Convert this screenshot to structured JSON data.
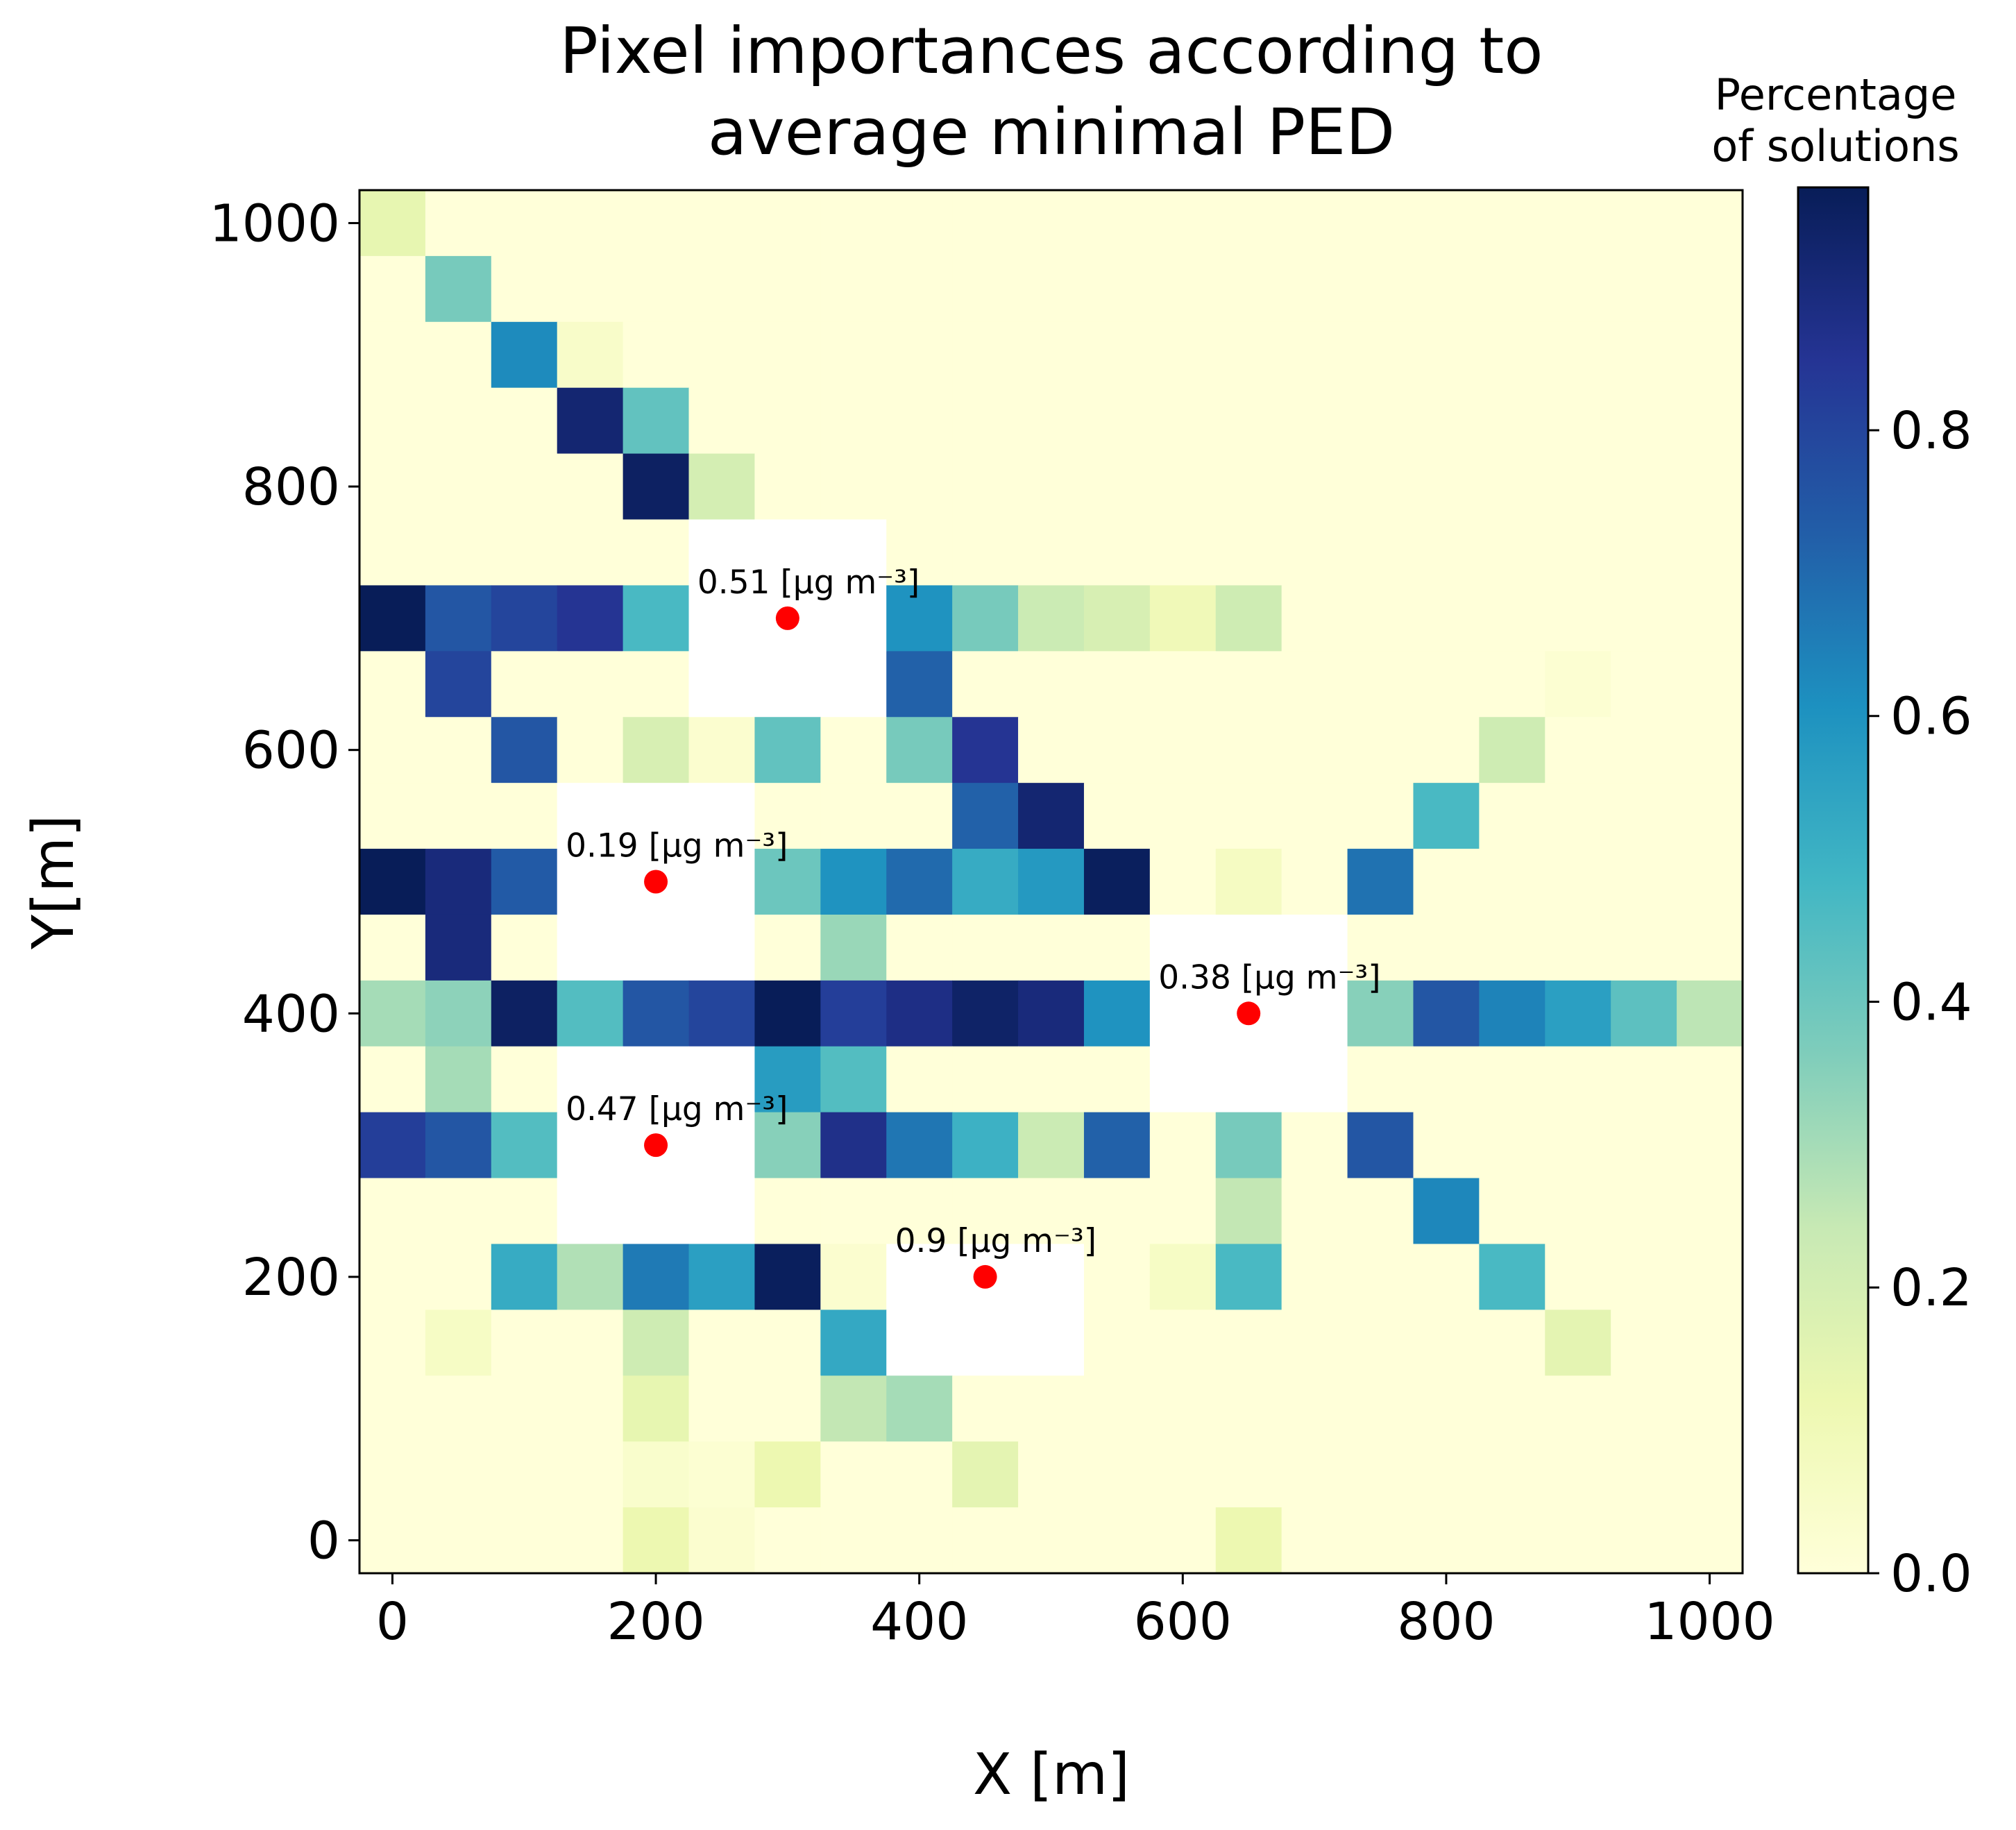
{
  "chart_data": {
    "type": "heatmap",
    "title_lines": [
      "Pixel importances according to",
      "average minimal PED"
    ],
    "xlabel": "X [m]",
    "ylabel": "Y[m]",
    "x_ticks": [
      "0",
      "200",
      "400",
      "600",
      "800",
      "1000"
    ],
    "y_ticks": [
      "0",
      "200",
      "400",
      "600",
      "800",
      "1000"
    ],
    "xlim": [
      -25,
      1025
    ],
    "ylim": [
      -25,
      1025
    ],
    "cell_size": 50,
    "grid": false,
    "colormap": "YlGnBu",
    "colorbar": {
      "label_lines": [
        "Percentage",
        "of solutions"
      ],
      "range": [
        0,
        0.97
      ],
      "ticks": [
        "0.0",
        "0.2",
        "0.4",
        "0.6",
        "0.8"
      ],
      "stops": [
        "#ffffd9",
        "#edf8b1",
        "#c7e9b4",
        "#7fcdbb",
        "#41b6c4",
        "#1d91c0",
        "#225ea8",
        "#253494",
        "#081d58"
      ]
    },
    "cell_x_centers": [
      0,
      50,
      100,
      150,
      200,
      250,
      300,
      350,
      400,
      450,
      500,
      550,
      600,
      650,
      700,
      750,
      800,
      850,
      900,
      950,
      1000
    ],
    "cell_y_centers_top_to_bottom": [
      1000,
      950,
      900,
      850,
      800,
      750,
      700,
      650,
      600,
      550,
      500,
      450,
      400,
      350,
      300,
      250,
      200,
      150,
      100,
      50,
      0
    ],
    "values_top_to_bottom": [
      [
        0.14,
        0,
        0,
        0,
        0,
        0,
        0,
        0,
        0,
        0,
        0,
        0,
        0,
        0,
        0,
        0,
        0,
        0,
        0,
        0,
        0
      ],
      [
        0,
        0.38,
        0,
        0,
        0,
        0,
        0,
        0,
        0,
        0,
        0,
        0,
        0,
        0,
        0,
        0,
        0,
        0,
        0,
        0,
        0
      ],
      [
        0,
        0,
        0.62,
        0.05,
        0,
        0,
        0,
        0,
        0,
        0,
        0,
        0,
        0,
        0,
        0,
        0,
        0,
        0,
        0,
        0,
        0
      ],
      [
        0,
        0,
        0,
        0.92,
        0.42,
        0,
        0,
        0,
        0,
        0,
        0,
        0,
        0,
        0,
        0,
        0,
        0,
        0,
        0,
        0,
        0
      ],
      [
        0,
        0,
        0,
        0,
        0.95,
        0.2,
        0,
        0,
        0,
        0,
        0,
        0,
        0,
        0,
        0,
        0,
        0,
        0,
        0,
        0,
        0
      ],
      [
        0,
        0,
        0,
        0,
        0,
        null,
        null,
        null,
        0,
        0,
        0,
        0,
        0,
        0,
        0,
        0,
        0,
        0,
        0,
        0,
        0
      ],
      [
        0.97,
        0.75,
        0.8,
        0.85,
        0.47,
        null,
        null,
        null,
        0.6,
        0.38,
        0.23,
        0.19,
        0.1,
        0.22,
        0,
        0,
        0,
        0,
        0,
        0,
        0
      ],
      [
        0,
        0.8,
        0,
        0,
        0,
        null,
        null,
        null,
        0.72,
        0,
        0,
        0,
        0,
        0,
        0,
        0,
        0,
        0,
        0.02,
        0,
        0
      ],
      [
        0,
        0,
        0.75,
        0,
        0.19,
        0.03,
        0.42,
        0,
        0.38,
        0.85,
        0,
        0,
        0,
        0,
        0,
        0,
        0,
        0.22,
        0,
        0,
        0
      ],
      [
        0,
        0,
        0,
        null,
        null,
        null,
        0,
        0,
        0,
        0.72,
        0.92,
        0,
        0,
        0,
        0,
        0,
        0.47,
        0,
        0,
        0,
        0
      ],
      [
        0.97,
        0.9,
        0.74,
        null,
        null,
        null,
        0.4,
        0.6,
        0.7,
        0.52,
        0.58,
        0.96,
        0,
        0.07,
        0,
        0.68,
        0,
        0,
        0,
        0,
        0
      ],
      [
        0,
        0.9,
        0,
        null,
        null,
        null,
        0,
        0.32,
        0,
        0,
        0,
        0,
        null,
        null,
        null,
        0,
        0,
        0,
        0,
        0,
        0
      ],
      [
        0.3,
        0.34,
        0.95,
        0.45,
        0.75,
        0.8,
        0.97,
        0.82,
        0.88,
        0.94,
        0.9,
        0.6,
        null,
        null,
        null,
        0.35,
        0.75,
        0.64,
        0.56,
        0.43,
        0.26
      ],
      [
        0,
        0.3,
        0,
        null,
        null,
        null,
        0.57,
        0.45,
        0,
        0,
        0,
        0,
        null,
        null,
        null,
        0,
        0,
        0,
        0,
        0,
        0
      ],
      [
        0.82,
        0.75,
        0.45,
        null,
        null,
        null,
        0.35,
        0.87,
        0.67,
        0.5,
        0.23,
        0.72,
        0,
        0.38,
        0,
        0.75,
        0,
        0,
        0,
        0,
        0
      ],
      [
        0,
        0,
        0,
        null,
        null,
        null,
        0,
        0,
        0,
        0,
        0,
        0,
        0,
        0.25,
        0,
        0,
        0.63,
        0,
        0,
        0,
        0
      ],
      [
        0,
        0,
        0.52,
        0.28,
        0.66,
        0.56,
        0.96,
        0.03,
        null,
        null,
        null,
        0,
        0.06,
        0.47,
        0,
        0,
        0,
        0.47,
        0,
        0,
        0
      ],
      [
        0,
        0.06,
        0,
        0,
        0.22,
        0,
        0,
        0.53,
        null,
        null,
        null,
        0,
        0,
        0,
        0,
        0,
        0,
        0,
        0.15,
        0,
        0
      ],
      [
        0,
        0,
        0,
        0,
        0.14,
        0,
        0,
        0.25,
        0.3,
        0,
        0,
        0,
        0,
        0,
        0,
        0,
        0,
        0,
        0,
        0,
        0
      ],
      [
        0,
        0,
        0,
        0,
        0.04,
        0.02,
        0.12,
        0,
        0,
        0.15,
        0,
        0,
        0,
        0,
        0,
        0,
        0,
        0,
        0,
        0,
        0
      ],
      [
        0,
        0,
        0,
        0,
        0.12,
        0.03,
        0,
        0,
        0,
        0,
        0,
        0,
        0,
        0.12,
        0,
        0,
        0,
        0,
        0,
        0,
        0
      ]
    ],
    "sources": [
      {
        "x": 300,
        "y": 700,
        "label": "0.51 [μg m⁻³]"
      },
      {
        "x": 200,
        "y": 500,
        "label": "0.19 [μg m⁻³]"
      },
      {
        "x": 650,
        "y": 400,
        "label": "0.38 [μg m⁻³]"
      },
      {
        "x": 200,
        "y": 300,
        "label": "0.47 [μg m⁻³]"
      },
      {
        "x": 450,
        "y": 200,
        "label": "0.9 [μg m⁻³]"
      }
    ],
    "marker_color": "#ff0000",
    "masked_color": "#ffffff"
  }
}
